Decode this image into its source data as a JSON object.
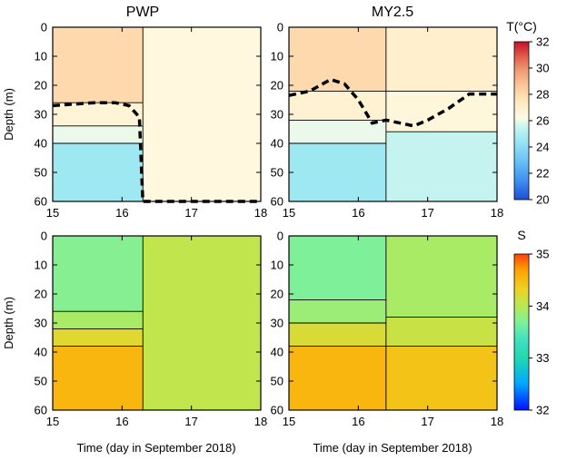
{
  "chart_data": [
    {
      "type": "heatmap",
      "title": "PWP",
      "variable": "temperature",
      "xlabel": "",
      "ylabel": "Depth (m)",
      "xlim": [
        15,
        18
      ],
      "ylim": [
        60,
        0
      ],
      "xticks": [
        "15",
        "16",
        "17",
        "18"
      ],
      "yticks": [
        "0",
        "10",
        "20",
        "30",
        "40",
        "50",
        "60"
      ],
      "front_day": 16.3,
      "regions": [
        {
          "x": [
            15,
            16.3
          ],
          "y": [
            0,
            26
          ],
          "value": 27.8
        },
        {
          "x": [
            15,
            16.3
          ],
          "y": [
            26,
            34
          ],
          "value": 26.5
        },
        {
          "x": [
            15,
            16.3
          ],
          "y": [
            34,
            40
          ],
          "value": 25.5
        },
        {
          "x": [
            15,
            16.3
          ],
          "y": [
            40,
            60
          ],
          "value": 23.6
        },
        {
          "x": [
            16.3,
            18
          ],
          "y": [
            0,
            60
          ],
          "value": 26.2
        }
      ],
      "mixed_layer_depth": {
        "day": [
          15,
          15.3,
          15.6,
          15.9,
          16.1,
          16.25,
          16.3,
          16.4,
          17,
          18
        ],
        "depth": [
          27,
          26.5,
          26,
          26,
          27,
          31,
          60,
          60,
          60,
          60
        ]
      }
    },
    {
      "type": "heatmap",
      "title": "MY2.5",
      "variable": "temperature",
      "xlabel": "",
      "ylabel": "",
      "xlim": [
        15,
        18
      ],
      "ylim": [
        60,
        0
      ],
      "xticks": [
        "15",
        "16",
        "17",
        "18"
      ],
      "yticks": [
        "0",
        "10",
        "20",
        "30",
        "40",
        "50",
        "60"
      ],
      "front_day": 16.4,
      "regions": [
        {
          "x": [
            15,
            16.4
          ],
          "y": [
            0,
            22
          ],
          "value": 27.8
        },
        {
          "x": [
            15,
            16.4
          ],
          "y": [
            22,
            32
          ],
          "value": 26.6
        },
        {
          "x": [
            15,
            16.4
          ],
          "y": [
            32,
            40
          ],
          "value": 25.5
        },
        {
          "x": [
            15,
            16.4
          ],
          "y": [
            40,
            60
          ],
          "value": 23.6
        },
        {
          "x": [
            16.4,
            18
          ],
          "y": [
            0,
            22
          ],
          "value": 26.8
        },
        {
          "x": [
            16.4,
            18
          ],
          "y": [
            22,
            36
          ],
          "value": 26.3
        },
        {
          "x": [
            16.4,
            18
          ],
          "y": [
            36,
            60
          ],
          "value": 24.6
        }
      ],
      "mixed_layer_depth": {
        "day": [
          15,
          15.3,
          15.6,
          15.8,
          16,
          16.2,
          16.4,
          16.6,
          16.8,
          17,
          17.3,
          17.6,
          18
        ],
        "depth": [
          23.5,
          22,
          18,
          19.5,
          25,
          33,
          32,
          33,
          34,
          32,
          28,
          23,
          23
        ]
      }
    },
    {
      "type": "heatmap",
      "title": "",
      "variable": "salinity",
      "xlabel": "Time (day in September 2018)",
      "ylabel": "Depth (m)",
      "xlim": [
        15,
        18
      ],
      "ylim": [
        60,
        0
      ],
      "xticks": [
        "15",
        "16",
        "17",
        "18"
      ],
      "yticks": [
        "0",
        "10",
        "20",
        "30",
        "40",
        "50",
        "60"
      ],
      "front_day": 16.3,
      "regions": [
        {
          "x": [
            15,
            16.3
          ],
          "y": [
            0,
            26
          ],
          "value": 33.55
        },
        {
          "x": [
            15,
            16.3
          ],
          "y": [
            26,
            32
          ],
          "value": 33.8
        },
        {
          "x": [
            15,
            16.3
          ],
          "y": [
            32,
            38
          ],
          "value": 34.15
        },
        {
          "x": [
            15,
            16.3
          ],
          "y": [
            38,
            60
          ],
          "value": 34.45
        },
        {
          "x": [
            16.3,
            18
          ],
          "y": [
            0,
            60
          ],
          "value": 33.95
        }
      ]
    },
    {
      "type": "heatmap",
      "title": "",
      "variable": "salinity",
      "xlabel": "Time (day in September 2018)",
      "ylabel": "",
      "xlim": [
        15,
        18
      ],
      "ylim": [
        60,
        0
      ],
      "xticks": [
        "15",
        "16",
        "17",
        "18"
      ],
      "yticks": [
        "0",
        "10",
        "20",
        "30",
        "40",
        "50",
        "60"
      ],
      "front_day": 16.4,
      "regions": [
        {
          "x": [
            15,
            16.4
          ],
          "y": [
            0,
            22
          ],
          "value": 33.5
        },
        {
          "x": [
            15,
            16.4
          ],
          "y": [
            22,
            30
          ],
          "value": 33.7
        },
        {
          "x": [
            15,
            16.4
          ],
          "y": [
            30,
            38
          ],
          "value": 34.1
        },
        {
          "x": [
            15,
            16.4
          ],
          "y": [
            38,
            60
          ],
          "value": 34.45
        },
        {
          "x": [
            16.4,
            18
          ],
          "y": [
            0,
            28
          ],
          "value": 33.8
        },
        {
          "x": [
            16.4,
            18
          ],
          "y": [
            28,
            38
          ],
          "value": 34.0
        },
        {
          "x": [
            16.4,
            18
          ],
          "y": [
            38,
            60
          ],
          "value": 34.35
        }
      ]
    }
  ],
  "colorbars": [
    {
      "title": "T(°C)",
      "range": [
        20,
        32
      ],
      "ticks": [
        "20",
        "22",
        "24",
        "26",
        "28",
        "30",
        "32"
      ]
    },
    {
      "title": "S",
      "range": [
        32,
        35
      ],
      "ticks": [
        "32",
        "33",
        "34",
        "35"
      ]
    }
  ],
  "colors": {
    "scale": [
      "#1a4fd6",
      "#3f8ef0",
      "#6cc3f7",
      "#9ee8f2",
      "#cdf6ef",
      "#fffbe4",
      "#ffe9c0",
      "#fbc99a",
      "#f09a72",
      "#e05a4a",
      "#c4102a"
    ],
    "salinity_scale": [
      "#0010ff",
      "#00a8ff",
      "#20d8b0",
      "#40e0c0",
      "#7ef09a",
      "#b4ea58",
      "#f0d020",
      "#ffa000",
      "#ff4010"
    ]
  }
}
